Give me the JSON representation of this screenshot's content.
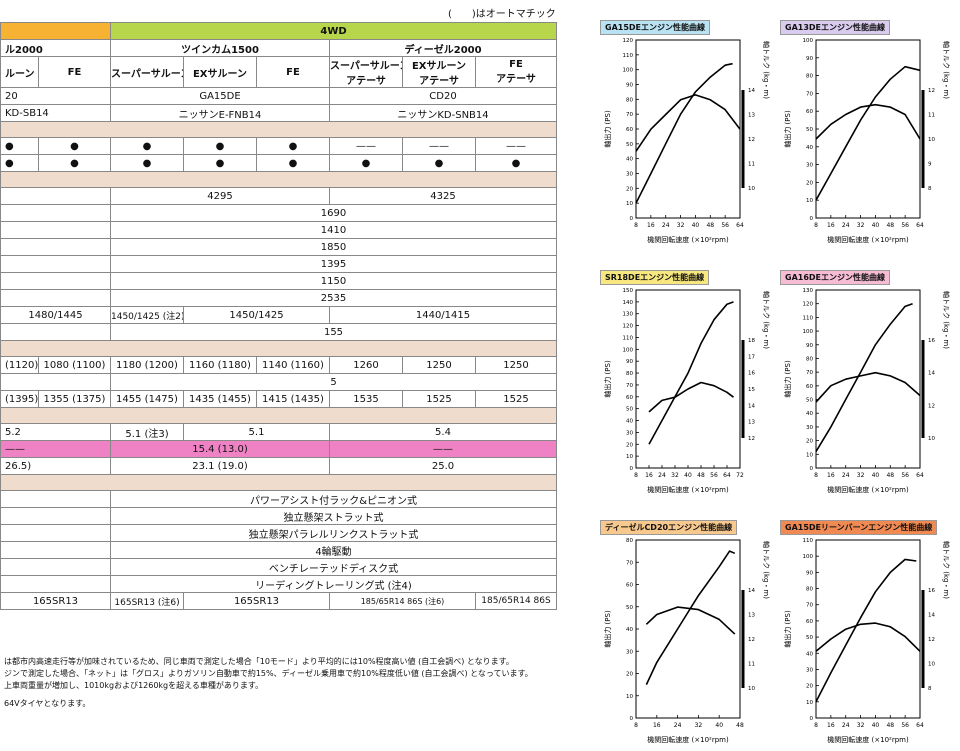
{
  "header_note": "(　　)はオートマチック車",
  "group_headers": {
    "left": "ル2000",
    "fourwd": "4WD"
  },
  "engine_groups": [
    "ツインカム1500",
    "ディーゼル2000"
  ],
  "grades": [
    {
      "name": "ルーン",
      "sub": ""
    },
    {
      "name": "FE",
      "sub": ""
    },
    {
      "name": "スーパーサルーン",
      "sub": ""
    },
    {
      "name": "EXサルーン",
      "sub": ""
    },
    {
      "name": "FE",
      "sub": ""
    },
    {
      "name": "スーパーサルーン",
      "sub": "アテーサ"
    },
    {
      "name": "EXサルーン",
      "sub": "アテーサ"
    },
    {
      "name": "FE",
      "sub": "アテーサ"
    }
  ],
  "engine_row": {
    "left": "20",
    "twincam": "GA15DE",
    "diesel": "CD20"
  },
  "model_row": {
    "left": "KD-SB14",
    "twincam": "ニッサンE-FNB14",
    "diesel": "ニッサンKD-SNB14"
  },
  "dots_row1": [
    "●",
    "●",
    "●",
    "●",
    "●",
    "——",
    "——",
    "——"
  ],
  "dots_row2": [
    "●",
    "●",
    "●",
    "●",
    "●",
    "●",
    "●",
    "●"
  ],
  "length": {
    "twincam": "4295",
    "diesel": "4325"
  },
  "single_rows": [
    "1690",
    "1410",
    "1850",
    "1395",
    "1150",
    "2535"
  ],
  "tread_row": {
    "left": "1480/1445",
    "c1": "1450/1425 (注2)",
    "c2": "1450/1425",
    "diesel": "1440/1415"
  },
  "ground": "155",
  "weight_row": [
    "(1120)",
    "1080 (1100)",
    "1180 (1200)",
    "1160 (1180)",
    "1140 (1160)",
    "1260",
    "1250",
    "1250"
  ],
  "capacity": "5",
  "gross_row": [
    "(1395)",
    "1355 (1375)",
    "1455 (1475)",
    "1435 (1455)",
    "1415 (1435)",
    "1535",
    "1525",
    "1525"
  ],
  "turn_row": {
    "left": "5.2",
    "c1": "5.1 (注3)",
    "c2": "5.1",
    "diesel": "5.4"
  },
  "fuel10_row": {
    "left": "——",
    "twincam": "15.4 (13.0)",
    "diesel": "——"
  },
  "fuel60_row": {
    "left": "26.5)",
    "twincam": "23.1 (19.0)",
    "diesel": "25.0"
  },
  "mech_rows": [
    "パワーアシスト付ラック&ピニオン式",
    "独立懸架ストラット式",
    "独立懸架パラレルリンクストラット式",
    "4輪駆動",
    "ベンチレーテッドディスク式",
    "リーディングトレーリング式 (注4)"
  ],
  "tire_row": {
    "left": "165SR13",
    "c1": "165SR13 (注6)",
    "c2": "165SR13",
    "d1": "185/65R14 86S (注6)",
    "d2": "185/65R14 86S"
  },
  "notes": [
    "は都市内高速走行等が加味されているため、同じ車両で測定した場合「10モード」より平均的には10%程度高い値 (自工会調べ) となります。",
    "ジンで測定した場合、「ネット」は「グロス」よりガソリン自動車で約15%、ディーゼル乗用車で約10%程度低い値 (自工会調べ) となっています。",
    "上車両重量が増加し、1010kgおよび1260kgを超える車種があります。",
    "64Vタイヤとなります。"
  ],
  "chart_data": [
    {
      "type": "line",
      "title": "GA15DEエンジン性能曲線",
      "title_color": "#b9e3f2",
      "xlabel": "機関回転速度 (×10²rpm)",
      "ylabel": "軸出力 (PS)",
      "y2label": "軸トルク (kg・m)",
      "xlim": [
        8,
        64
      ],
      "ylim": [
        0,
        120
      ],
      "y2lim": [
        10,
        14
      ],
      "xticks": [
        8,
        16,
        24,
        32,
        40,
        48,
        56,
        64
      ],
      "yticks": [
        0,
        10,
        20,
        30,
        40,
        50,
        60,
        70,
        80,
        90,
        100,
        110,
        120
      ],
      "y2ticks": [
        10,
        11,
        12,
        13,
        14
      ],
      "series": [
        {
          "axis": "left",
          "x": [
            8,
            16,
            24,
            32,
            40,
            48,
            56,
            60
          ],
          "y": [
            10,
            30,
            50,
            70,
            85,
            95,
            103,
            104
          ]
        },
        {
          "axis": "right",
          "x": [
            8,
            16,
            24,
            32,
            40,
            48,
            56,
            64
          ],
          "y": [
            11.5,
            12.4,
            13.0,
            13.6,
            13.8,
            13.6,
            13.2,
            12.4
          ]
        }
      ]
    },
    {
      "type": "line",
      "title": "GA13DEエンジン性能曲線",
      "title_color": "#d9ccef",
      "xlabel": "機関回転速度 (×10²rpm)",
      "ylabel": "軸出力 (PS)",
      "y2label": "軸トルク (kg・m)",
      "xlim": [
        8,
        64
      ],
      "ylim": [
        0,
        100
      ],
      "y2lim": [
        8,
        12
      ],
      "xticks": [
        8,
        16,
        24,
        32,
        40,
        48,
        56,
        64
      ],
      "yticks": [
        0,
        10,
        20,
        30,
        40,
        50,
        60,
        70,
        80,
        90,
        100
      ],
      "y2ticks": [
        8,
        9,
        10,
        11,
        12
      ],
      "series": [
        {
          "axis": "left",
          "x": [
            8,
            16,
            24,
            32,
            40,
            48,
            56,
            64
          ],
          "y": [
            10,
            25,
            40,
            55,
            68,
            78,
            85,
            83
          ]
        },
        {
          "axis": "right",
          "x": [
            8,
            16,
            24,
            32,
            40,
            48,
            56,
            64
          ],
          "y": [
            10.0,
            10.6,
            11.0,
            11.3,
            11.4,
            11.3,
            11.0,
            10.0
          ]
        }
      ]
    },
    {
      "type": "line",
      "title": "SR18DEエンジン性能曲線",
      "title_color": "#f7e77e",
      "xlabel": "機関回転速度 (×10²rpm)",
      "ylabel": "軸出力 (PS)",
      "y2label": "軸トルク (kg・m)",
      "xlim": [
        8,
        72
      ],
      "ylim": [
        0,
        150
      ],
      "y2lim": [
        12,
        18
      ],
      "xticks": [
        8,
        16,
        24,
        32,
        40,
        48,
        56,
        64,
        72
      ],
      "yticks": [
        0,
        10,
        20,
        30,
        40,
        50,
        60,
        70,
        80,
        90,
        100,
        110,
        120,
        130,
        140,
        150
      ],
      "y2ticks": [
        12,
        13,
        14,
        15,
        16,
        17,
        18
      ],
      "series": [
        {
          "axis": "left",
          "x": [
            16,
            24,
            32,
            40,
            48,
            56,
            64,
            68
          ],
          "y": [
            20,
            40,
            60,
            80,
            105,
            125,
            138,
            140
          ]
        },
        {
          "axis": "right",
          "x": [
            16,
            24,
            32,
            40,
            48,
            56,
            64,
            68
          ],
          "y": [
            13.6,
            14.3,
            14.5,
            15.0,
            15.4,
            15.2,
            14.8,
            14.5
          ]
        }
      ]
    },
    {
      "type": "line",
      "title": "GA16DEエンジン性能曲線",
      "title_color": "#f5bcd3",
      "xlabel": "機関回転速度 (×10²rpm)",
      "ylabel": "軸出力 (PS)",
      "y2label": "軸トルク (kg・m)",
      "xlim": [
        8,
        64
      ],
      "ylim": [
        0,
        130
      ],
      "y2lim": [
        10,
        16
      ],
      "xticks": [
        8,
        16,
        24,
        32,
        40,
        48,
        56,
        64
      ],
      "yticks": [
        0,
        10,
        20,
        30,
        40,
        50,
        60,
        70,
        80,
        90,
        100,
        110,
        120,
        130
      ],
      "y2ticks": [
        10,
        12,
        14,
        16
      ],
      "series": [
        {
          "axis": "left",
          "x": [
            8,
            16,
            24,
            32,
            40,
            48,
            56,
            60
          ],
          "y": [
            12,
            30,
            50,
            70,
            90,
            105,
            118,
            120
          ]
        },
        {
          "axis": "right",
          "x": [
            8,
            16,
            24,
            32,
            40,
            48,
            56,
            64
          ],
          "y": [
            12.2,
            13.2,
            13.6,
            13.8,
            14.0,
            13.8,
            13.4,
            12.6
          ]
        }
      ]
    },
    {
      "type": "line",
      "title": "ディーゼルCD20エンジン性能曲線",
      "title_color": "#f7c98e",
      "xlabel": "機関回転速度 (×10²rpm)",
      "ylabel": "軸出力 (PS)",
      "y2label": "軸トルク (kg・m)",
      "xlim": [
        8,
        48
      ],
      "ylim": [
        0,
        80
      ],
      "y2lim": [
        10,
        14
      ],
      "xticks": [
        8,
        16,
        24,
        32,
        40,
        48
      ],
      "yticks": [
        0,
        10,
        20,
        30,
        40,
        50,
        60,
        70,
        80
      ],
      "y2ticks": [
        10,
        11,
        12,
        13,
        14
      ],
      "series": [
        {
          "axis": "left",
          "x": [
            12,
            16,
            24,
            32,
            40,
            44,
            46
          ],
          "y": [
            15,
            25,
            40,
            55,
            68,
            75,
            74
          ]
        },
        {
          "axis": "right",
          "x": [
            12,
            16,
            24,
            32,
            40,
            46
          ],
          "y": [
            12.6,
            13.0,
            13.3,
            13.2,
            12.8,
            12.2
          ]
        }
      ]
    },
    {
      "type": "line",
      "title": "GA15DEリーンバーンエンジン性能曲線",
      "title_color": "#f08a52",
      "xlabel": "機関回転速度 (×10²rpm)",
      "ylabel": "軸出力 (PS)",
      "y2label": "軸トルク (kg・m)",
      "xlim": [
        8,
        64
      ],
      "ylim": [
        0,
        110
      ],
      "y2lim": [
        8,
        16
      ],
      "xticks": [
        8,
        16,
        24,
        32,
        40,
        48,
        56,
        64
      ],
      "yticks": [
        0,
        10,
        20,
        30,
        40,
        50,
        60,
        70,
        80,
        90,
        100,
        110
      ],
      "y2ticks": [
        8,
        10,
        12,
        14,
        16
      ],
      "series": [
        {
          "axis": "left",
          "x": [
            8,
            16,
            24,
            32,
            40,
            48,
            56,
            62
          ],
          "y": [
            10,
            28,
            45,
            62,
            78,
            90,
            98,
            97
          ]
        },
        {
          "axis": "right",
          "x": [
            8,
            16,
            24,
            32,
            40,
            48,
            56,
            64
          ],
          "y": [
            11.0,
            12.0,
            12.8,
            13.2,
            13.3,
            13.0,
            12.2,
            11.0
          ]
        }
      ]
    }
  ]
}
